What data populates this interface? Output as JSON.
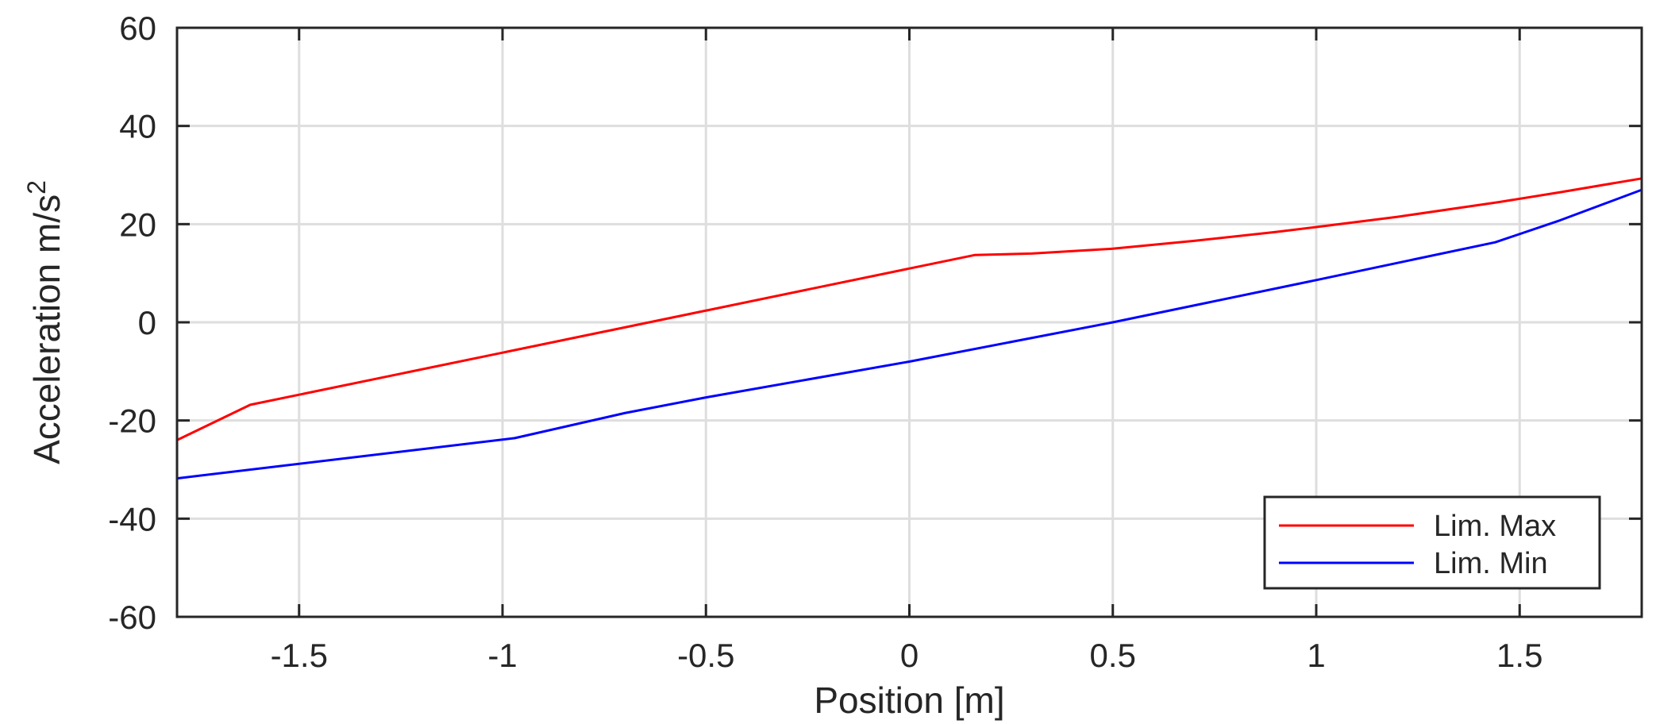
{
  "chart_data": {
    "type": "line",
    "xlabel": "Position [m]",
    "ylabel_base": "Acceleration m/s",
    "ylabel_exponent": "2",
    "xlim": [
      -1.8,
      1.8
    ],
    "ylim": [
      -60,
      60
    ],
    "xticks": [
      -1.5,
      -1,
      -0.5,
      0,
      0.5,
      1,
      1.5
    ],
    "xtick_labels": [
      "-1.5",
      "-1",
      "-0.5",
      "0",
      "0.5",
      "1",
      "1.5"
    ],
    "yticks": [
      -60,
      -40,
      -20,
      0,
      20,
      40,
      60
    ],
    "ytick_labels": [
      "-60",
      "-40",
      "-20",
      "0",
      "20",
      "40",
      "60"
    ],
    "grid": true,
    "legend_position": "bottom-right",
    "series": [
      {
        "name": "Lim. Max",
        "color": "#ff0000",
        "x": [
          -1.8,
          -1.62,
          0.16,
          0.3,
          0.5,
          0.7,
          0.9,
          1.0,
          1.2,
          1.45,
          1.6,
          1.8
        ],
        "y": [
          -24,
          -16.8,
          13.7,
          14.0,
          15.0,
          16.6,
          18.4,
          19.4,
          21.5,
          24.5,
          26.5,
          29.3
        ]
      },
      {
        "name": "Lim. Min",
        "color": "#0000ff",
        "x": [
          -1.8,
          -0.97,
          -0.7,
          -0.5,
          0,
          0.5,
          1.0,
          1.44,
          1.6,
          1.8
        ],
        "y": [
          -31.8,
          -23.6,
          -18.5,
          -15.3,
          -8.0,
          0,
          8.6,
          16.3,
          20.8,
          27.0
        ]
      }
    ]
  }
}
